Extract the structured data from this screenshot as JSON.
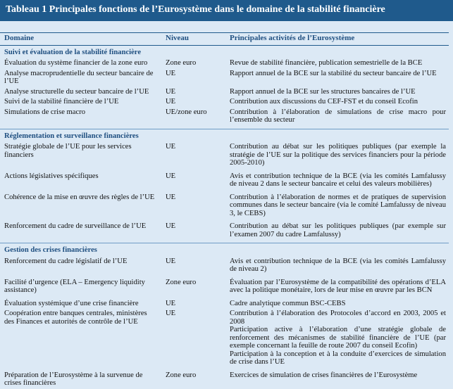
{
  "header": {
    "title": "Tableau 1 Principales fonctions de l’Eurosystème dans le domaine de la stabilité financière"
  },
  "table": {
    "columns": [
      "Domaine",
      "Niveau",
      "Principales activités de l’Eurosystème"
    ],
    "sections": [
      {
        "title": "Suivi et évaluation de la stabilité financière",
        "rows": [
          {
            "domaine": "Évaluation du système financier de la zone euro",
            "niveau": "Zone euro",
            "activites": [
              "Revue de stabilité financière, publication semestrielle de la BCE"
            ]
          },
          {
            "domaine": "Analyse macroprudentielle du secteur bancaire de l’UE",
            "niveau": "UE",
            "activites": [
              "Rapport annuel de la BCE sur la stabilité du secteur bancaire de l’UE"
            ]
          },
          {
            "domaine": "Analyse structurelle du secteur bancaire de l’UE",
            "niveau": "UE",
            "activites": [
              "Rapport annuel de la BCE sur les structures bancaires de l’UE"
            ]
          },
          {
            "domaine": "Suivi de la stabilité financière de l’UE",
            "niveau": "UE",
            "activites": [
              "Contribution aux discussions du CEF-FST et du conseil Ecofin"
            ]
          },
          {
            "domaine": "Simulations de crise macro",
            "niveau": "UE/zone euro",
            "activites": [
              "Contribution à l’élaboration de simulations de crise macro pour l’ensemble du secteur"
            ]
          }
        ]
      },
      {
        "title": "Réglementation et surveillance financières",
        "rows": [
          {
            "domaine": "Stratégie globale de l’UE pour les services financiers",
            "niveau": "UE",
            "activites": [
              "Contribution au débat sur les politiques publiques (par exemple la stratégie de l’UE sur la politique des services financiers pour la période 2005-2010)"
            ]
          },
          {
            "domaine": "Actions législatives spécifiques",
            "niveau": "UE",
            "activites": [
              "Avis et contribution technique de la BCE (via les comités Lamfalussy de niveau 2 dans le secteur bancaire et celui des valeurs mobilières)"
            ]
          },
          {
            "domaine": "Cohérence de la mise en œuvre des règles de l’UE",
            "niveau": "UE",
            "activites": [
              "Contribution à l’élaboration de normes et de pratiques de supervision communes dans le secteur bancaire (via le comité Lamfalussy de niveau 3, le CEBS)"
            ]
          },
          {
            "domaine": "Renforcement du cadre de surveillance de l’UE",
            "niveau": "UE",
            "activites": [
              "Contribution au débat sur les politiques publiques (par exemple sur l’examen 2007 du cadre Lamfalussy)"
            ]
          }
        ]
      },
      {
        "title": "Gestion des crises financières",
        "rows": [
          {
            "domaine": "Renforcement du cadre législatif de l’UE",
            "niveau": "UE",
            "activites": [
              "Avis et contribution technique de la BCE (via les comités Lamfalussy de niveau 2)"
            ]
          },
          {
            "domaine": "Facilité d’urgence (ELA – Emergency liquidity assistance)",
            "niveau": "Zone euro",
            "activites": [
              "Évaluation par l’Eurosystème de la compatibilité des opérations d’ELA avec la politique monétaire, lors de leur mise en œuvre par les BCN"
            ]
          },
          {
            "domaine": "Évaluation systémique d’une crise financière",
            "niveau": "UE",
            "activites": [
              "Cadre analytique commun BSC-CEBS"
            ]
          },
          {
            "domaine": "Coopération entre banques centrales, ministères des Finances et autorités de contrôle de l’UE",
            "niveau": "UE",
            "activites": [
              "Contribution à l’élaboration des Protocoles d’accord en 2003, 2005 et 2008",
              "Participation active à l’élaboration d’une stratégie globale de renforcement des mécanismes de stabilité financière de l’UE (par exemple concernant la feuille de route 2007 du conseil Ecofin)",
              "Participation à la conception et à la conduite d’exercices de simulation de crise dans l’UE"
            ]
          },
          {
            "domaine": "Préparation de l’Eurosystème à la survenue de crises financières",
            "niveau": "Zone euro",
            "activites": [
              "Exercices de simulation de crises financières de l’Eurosystème"
            ]
          }
        ]
      }
    ]
  }
}
